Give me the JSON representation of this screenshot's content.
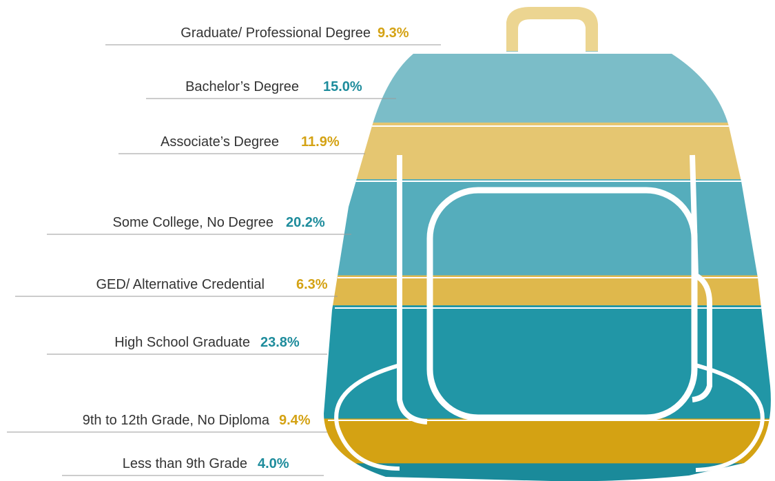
{
  "chart_data": {
    "type": "pictograph",
    "categories": [
      "Graduate/ Professional Degree",
      "Bachelor’s Degree",
      "Associate’s Degree",
      "Some College, No Degree",
      "GED/ Alternative Credential",
      "High School Graduate",
      "9th to 12th Grade, No Diploma",
      "Less than 9th Grade"
    ],
    "values": [
      9.3,
      15.0,
      11.9,
      20.2,
      6.3,
      23.8,
      9.4,
      4.0
    ],
    "value_labels": [
      "9.3%",
      "15.0%",
      "11.9%",
      "20.2%",
      "6.3%",
      "23.8%",
      "9.4%",
      "4.0%"
    ],
    "colors": [
      "#ecd591",
      "#7bbdc8",
      "#e5c671",
      "#55adbc",
      "#dfb84c",
      "#2196a6",
      "#d4a213",
      "#1a8a9a"
    ],
    "label_colors": [
      "#d4a213",
      "#1e8c9c",
      "#d4a213",
      "#1e8c9c",
      "#d4a213",
      "#1e8c9c",
      "#d4a213",
      "#1e8c9c"
    ]
  }
}
